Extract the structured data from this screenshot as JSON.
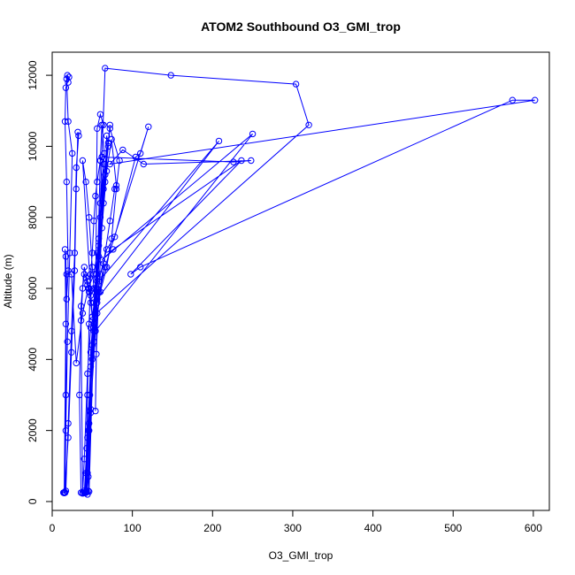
{
  "chart_data": {
    "type": "scatter",
    "title": "ATOM2 Southbound O3_GMI_trop",
    "xlabel": "O3_GMI_trop",
    "ylabel": "Altitude (m)",
    "xlim": [
      0,
      620
    ],
    "ylim": [
      -250,
      12650
    ],
    "xticks": [
      0,
      100,
      200,
      300,
      400,
      500,
      600
    ],
    "yticks": [
      0,
      2000,
      4000,
      6000,
      8000,
      10000,
      12000
    ],
    "grid": false,
    "legend": "none",
    "color": "#0000ff",
    "series": [
      {
        "points": [
          [
            16,
            250
          ],
          [
            20,
            1800
          ],
          [
            24,
            4200
          ],
          [
            28,
            6500
          ],
          [
            30,
            8800
          ],
          [
            32,
            10400
          ],
          [
            33,
            10300
          ],
          [
            30,
            9400
          ],
          [
            28,
            7000
          ],
          [
            24,
            4800
          ],
          [
            20,
            2200
          ],
          [
            17,
            300
          ],
          [
            16,
            250
          ],
          [
            17,
            2000
          ],
          [
            19,
            4500
          ],
          [
            22,
            7000
          ],
          [
            25,
            9800
          ],
          [
            20,
            10700
          ],
          [
            18,
            11900
          ],
          [
            19,
            12000
          ],
          [
            20,
            11800
          ],
          [
            21,
            11950
          ],
          [
            17,
            11650
          ],
          [
            16,
            10700
          ],
          [
            18,
            9000
          ],
          [
            20,
            6500
          ],
          [
            18,
            5700
          ],
          [
            17,
            6900
          ],
          [
            16,
            7100
          ],
          [
            17,
            5000
          ],
          [
            15,
            250
          ],
          [
            14,
            250
          ],
          [
            15,
            240
          ],
          [
            16,
            260
          ],
          [
            17,
            3000
          ],
          [
            18,
            6400
          ],
          [
            24,
            6400
          ],
          [
            30,
            3900
          ],
          [
            38,
            5300
          ],
          [
            45,
            6000
          ],
          [
            52,
            6400
          ],
          [
            56,
            7000
          ],
          [
            58,
            7200
          ],
          [
            62,
            9700
          ],
          [
            66,
            12200
          ],
          [
            148,
            12000
          ],
          [
            304,
            11750
          ],
          [
            320,
            10600
          ],
          [
            50,
            5200
          ],
          [
            56,
            6200
          ],
          [
            60,
            9600
          ],
          [
            62,
            10600
          ],
          [
            65,
            9800
          ],
          [
            52,
            4800
          ],
          [
            46,
            280
          ],
          [
            44,
            200
          ],
          [
            42,
            260
          ],
          [
            44,
            800
          ],
          [
            48,
            4200
          ],
          [
            55,
            6400
          ],
          [
            60,
            8400
          ],
          [
            64,
            9500
          ],
          [
            56,
            6000
          ],
          [
            48,
            2500
          ],
          [
            45,
            300
          ],
          [
            42,
            250
          ],
          [
            47,
            3000
          ],
          [
            52,
            5600
          ],
          [
            58,
            7400
          ],
          [
            64,
            8800
          ],
          [
            70,
            10000
          ],
          [
            68,
            10300
          ],
          [
            66,
            9000
          ],
          [
            58,
            6900
          ],
          [
            52,
            4900
          ],
          [
            46,
            2000
          ],
          [
            43,
            270
          ],
          [
            41,
            240
          ],
          [
            44,
            1800
          ],
          [
            50,
            4400
          ],
          [
            56,
            6300
          ],
          [
            66,
            9200
          ],
          [
            72,
            10600
          ],
          [
            70,
            10100
          ],
          [
            64,
            8400
          ],
          [
            56,
            6000
          ],
          [
            54,
            2550
          ],
          [
            55,
            4150
          ],
          [
            58,
            5900
          ],
          [
            62,
            7700
          ],
          [
            68,
            9300
          ],
          [
            74,
            10200
          ],
          [
            80,
            8900
          ],
          [
            78,
            8800
          ],
          [
            72,
            7900
          ],
          [
            64,
            6700
          ],
          [
            56,
            5300
          ],
          [
            50,
            4000
          ],
          [
            45,
            2000
          ],
          [
            42,
            280
          ],
          [
            40,
            250
          ],
          [
            43,
            1500
          ],
          [
            48,
            3800
          ],
          [
            54,
            6000
          ],
          [
            60,
            8000
          ],
          [
            66,
            9500
          ],
          [
            72,
            10500
          ],
          [
            84,
            9600
          ],
          [
            80,
            8800
          ],
          [
            74,
            7400
          ],
          [
            68,
            6600
          ],
          [
            60,
            5900
          ],
          [
            54,
            4800
          ],
          [
            48,
            2600
          ],
          [
            45,
            700
          ],
          [
            43,
            300
          ],
          [
            46,
            2200
          ],
          [
            52,
            5000
          ],
          [
            60,
            6400
          ],
          [
            68,
            7100
          ],
          [
            78,
            7450
          ],
          [
            104,
            9700
          ],
          [
            110,
            9800
          ],
          [
            120,
            10550
          ],
          [
            66,
            6600
          ],
          [
            56,
            5600
          ],
          [
            50,
            5100
          ],
          [
            48,
            4900
          ],
          [
            44,
            3600
          ],
          [
            40,
            1200
          ],
          [
            38,
            230
          ],
          [
            36,
            250
          ],
          [
            34,
            3000
          ],
          [
            36,
            5500
          ],
          [
            40,
            6600
          ],
          [
            44,
            6200
          ],
          [
            46,
            6000
          ],
          [
            48,
            5800
          ],
          [
            58,
            6200
          ],
          [
            208,
            10150
          ],
          [
            56,
            5700
          ],
          [
            52,
            4500
          ],
          [
            54,
            4800
          ],
          [
            250,
            10350
          ],
          [
            62,
            6800
          ],
          [
            76,
            7100
          ],
          [
            236,
            9600
          ],
          [
            98,
            6400
          ],
          [
            110,
            6600
          ],
          [
            574,
            11300
          ],
          [
            602,
            11300
          ],
          [
            72,
            9500
          ],
          [
            88,
            9900
          ],
          [
            114,
            9500
          ],
          [
            248,
            9600
          ],
          [
            226,
            9560
          ],
          [
            62,
            9700
          ],
          [
            60,
            9600
          ],
          [
            56,
            9000
          ],
          [
            54,
            8600
          ],
          [
            52,
            7900
          ],
          [
            50,
            7000
          ],
          [
            48,
            6400
          ],
          [
            46,
            5000
          ],
          [
            44,
            3000
          ],
          [
            42,
            800
          ],
          [
            40,
            300
          ],
          [
            38,
            250
          ],
          [
            36,
            5100
          ],
          [
            38,
            6000
          ],
          [
            40,
            6400
          ],
          [
            42,
            6300
          ],
          [
            44,
            6100
          ],
          [
            46,
            5900
          ],
          [
            48,
            5600
          ],
          [
            50,
            5200
          ],
          [
            38,
            9600
          ],
          [
            42,
            9000
          ],
          [
            46,
            8000
          ],
          [
            50,
            6600
          ],
          [
            52,
            6000
          ],
          [
            54,
            5300
          ],
          [
            56,
            10500
          ],
          [
            60,
            10900
          ],
          [
            64,
            10600
          ]
        ]
      }
    ]
  }
}
